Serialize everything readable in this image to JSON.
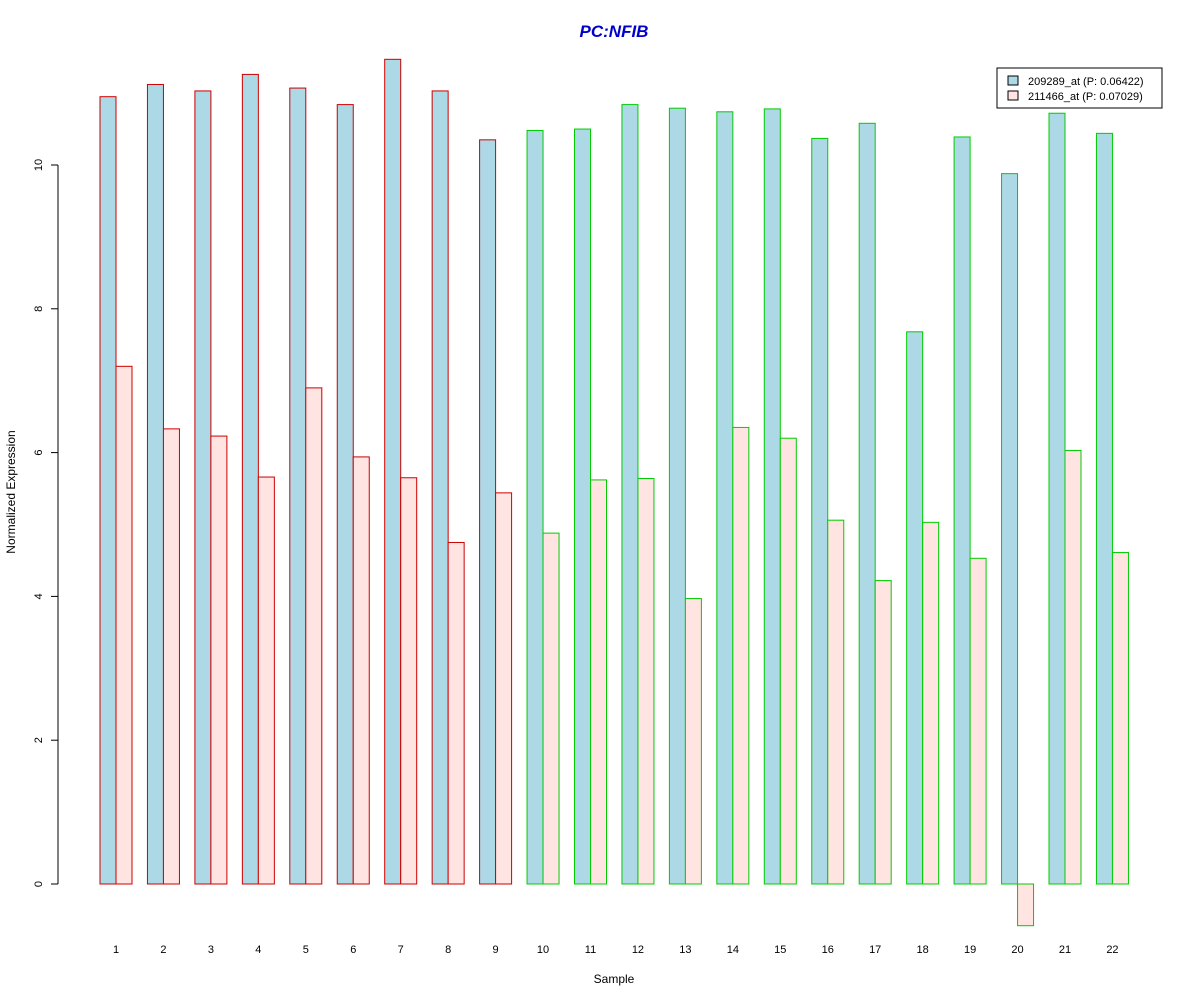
{
  "chart_data": {
    "type": "bar",
    "title": "PC:NFIB",
    "title_color": "#0000cc",
    "xlabel": "Sample",
    "ylabel": "Normalized Expression",
    "ylim": [
      -0.6,
      11.6
    ],
    "yticks": [
      0,
      2,
      4,
      6,
      8,
      10
    ],
    "grid": false,
    "legend_position": "top-right",
    "categories": [
      "1",
      "2",
      "3",
      "4",
      "5",
      "6",
      "7",
      "8",
      "9",
      "10",
      "11",
      "12",
      "13",
      "14",
      "15",
      "16",
      "17",
      "18",
      "19",
      "20",
      "21",
      "22"
    ],
    "group_border_colors": [
      "#cc0000",
      "#cc0000",
      "#cc0000",
      "#cc0000",
      "#cc0000",
      "#cc0000",
      "#cc0000",
      "#cc0000",
      "#cc0000",
      "#00cc00",
      "#00cc00",
      "#00cc00",
      "#00cc00",
      "#00cc00",
      "#00cc00",
      "#00cc00",
      "#00cc00",
      "#00cc00",
      "#00cc00",
      "#00cc00",
      "#00cc00",
      "#00cc00"
    ],
    "series": [
      {
        "name": "209289_at (P: 0.06422)",
        "fill": "#add8e6",
        "values": [
          10.95,
          11.12,
          11.03,
          11.26,
          11.07,
          10.84,
          11.47,
          11.03,
          10.35,
          10.48,
          10.5,
          10.84,
          10.79,
          10.74,
          10.78,
          10.37,
          10.58,
          7.68,
          10.39,
          9.88,
          10.72,
          10.44
        ]
      },
      {
        "name": "211466_at (P: 0.07029)",
        "fill": "#ffe4e1",
        "values": [
          7.2,
          6.33,
          6.23,
          5.66,
          6.9,
          5.94,
          5.65,
          4.75,
          5.44,
          4.88,
          5.62,
          5.64,
          3.97,
          6.35,
          6.2,
          5.06,
          4.22,
          5.03,
          4.53,
          -0.58,
          6.03,
          4.61
        ]
      }
    ]
  }
}
